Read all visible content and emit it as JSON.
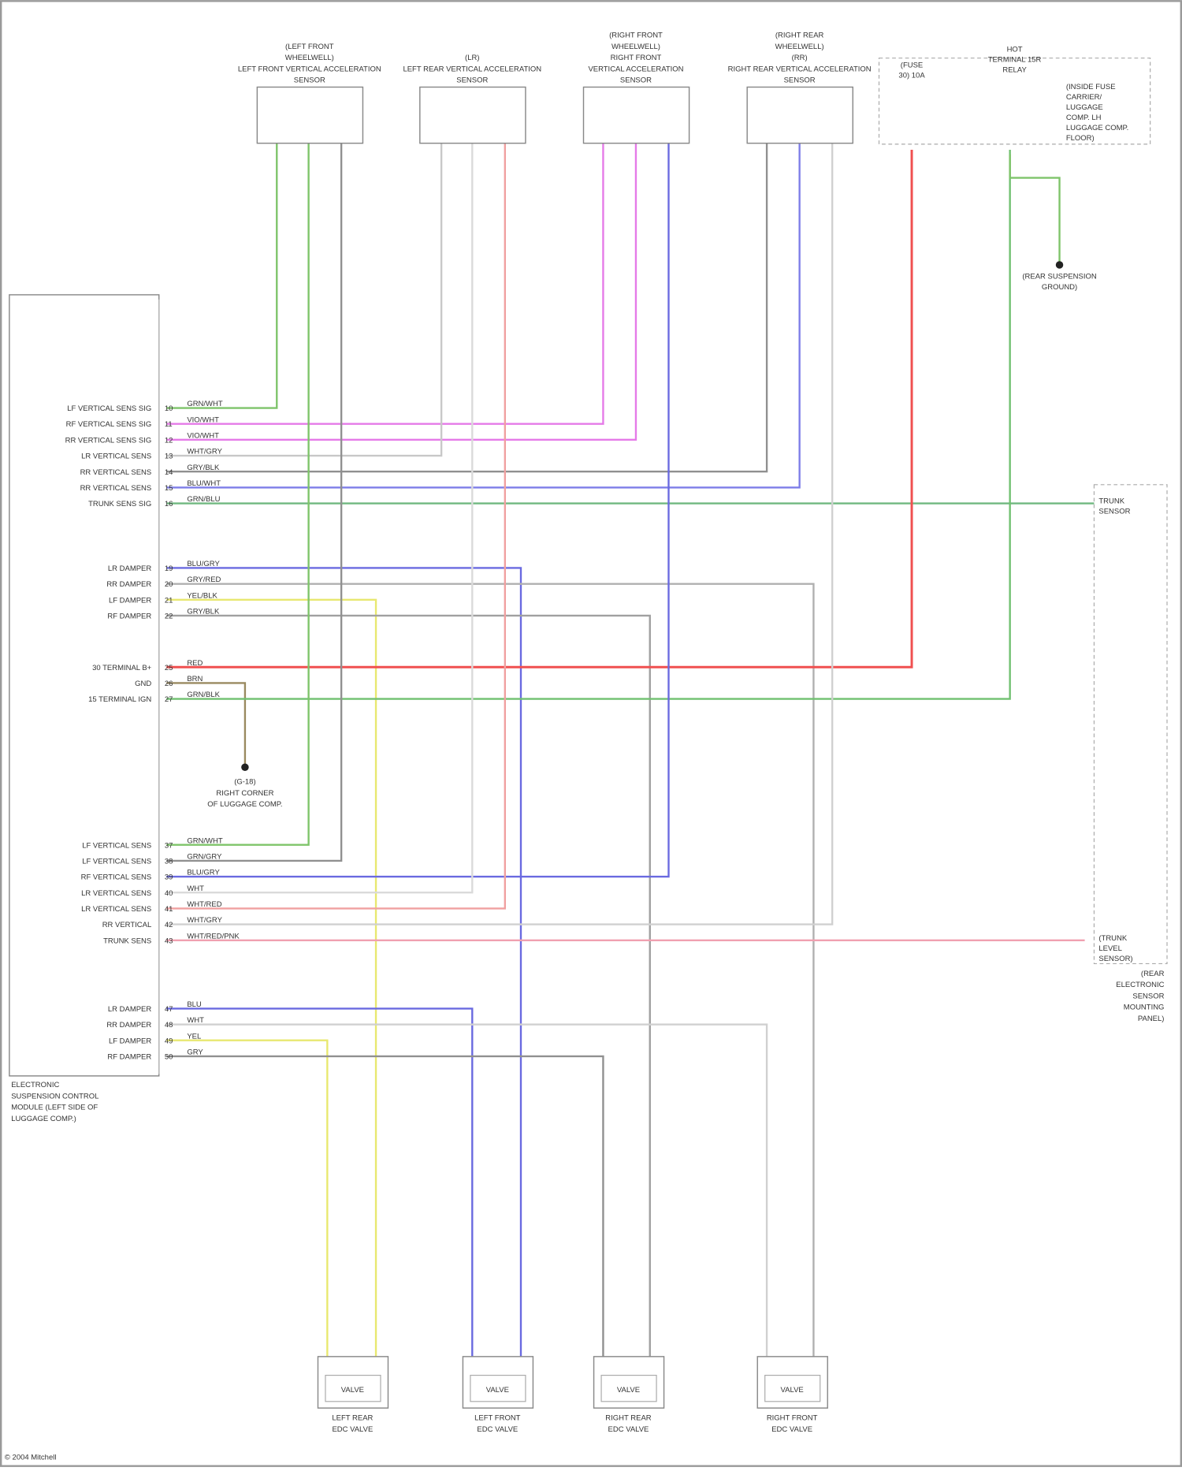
{
  "module": {
    "name_lines": [
      "ELECTRONIC",
      "SUSPENSION CONTROL",
      "MODULE (LEFT SIDE OF",
      "LUGGAGE COMP.)"
    ],
    "pins": [
      {
        "pin": "10",
        "label": "LF VERTICAL SENS SIG",
        "wire": "GRN/WHT",
        "color": "#7ec46a"
      },
      {
        "pin": "11",
        "label": "RF VERTICAL SENS SIG",
        "wire": "VIO/WHT",
        "color": "#e57ae8"
      },
      {
        "pin": "12",
        "label": "RR VERTICAL SENS SIG",
        "wire": "VIO/WHT",
        "color": "#e57ae8"
      },
      {
        "pin": "13",
        "label": "LR VERTICAL SENS",
        "wire": "WHT/GRY",
        "color": "#c8c8c8"
      },
      {
        "pin": "14",
        "label": "RR VERTICAL SENS",
        "wire": "GRY/BLK",
        "color": "#909090"
      },
      {
        "pin": "15",
        "label": "RR VERTICAL SENS",
        "wire": "BLU/WHT",
        "color": "#7d7de8"
      },
      {
        "pin": "16",
        "label": "TRUNK SENS SIG",
        "wire": "GRN/BLU",
        "color": "#70b880"
      },
      {
        "pin": "19",
        "label": "LR DAMPER",
        "wire": "BLU/GRY",
        "color": "#6a6ae0"
      },
      {
        "pin": "20",
        "label": "RR DAMPER",
        "wire": "GRY/RED",
        "color": "#b0b0b0"
      },
      {
        "pin": "21",
        "label": "LF DAMPER",
        "wire": "YEL/BLK",
        "color": "#e8e870"
      },
      {
        "pin": "22",
        "label": "RF DAMPER",
        "wire": "GRY/BLK",
        "color": "#a0a0a0"
      },
      {
        "pin": "25",
        "label": "30 TERMINAL B+",
        "wire": "RED",
        "color": "#f05050"
      },
      {
        "pin": "26",
        "label": "GND",
        "wire": "BRN",
        "color": "#9a8a60"
      },
      {
        "pin": "27",
        "label": "15 TERMINAL IGN",
        "wire": "GRN/BLK",
        "color": "#70c070"
      },
      {
        "pin": "37",
        "label": "LF VERTICAL SENS",
        "wire": "GRN/WHT",
        "color": "#7ec46a"
      },
      {
        "pin": "38",
        "label": "LF VERTICAL SENS",
        "wire": "GRN/GRY",
        "color": "#909090"
      },
      {
        "pin": "39",
        "label": "RF VERTICAL SENS",
        "wire": "BLU/GRY",
        "color": "#6a6ae0"
      },
      {
        "pin": "40",
        "label": "LR VERTICAL SENS",
        "wire": "WHT",
        "color": "#dadada"
      },
      {
        "pin": "41",
        "label": "LR VERTICAL SENS",
        "wire": "WHT/RED",
        "color": "#f0a0a0"
      },
      {
        "pin": "42",
        "label": "RR VERTICAL",
        "wire": "WHT/GRY",
        "color": "#d0d0d0"
      },
      {
        "pin": "43",
        "label": "TRUNK SENS",
        "wire": "WHT/RED/PNK",
        "color": "#f0a0b0"
      },
      {
        "pin": "47",
        "label": "LR DAMPER",
        "wire": "BLU",
        "color": "#6a6ae0"
      },
      {
        "pin": "48",
        "label": "RR DAMPER",
        "wire": "WHT",
        "color": "#d0d0d0"
      },
      {
        "pin": "49",
        "label": "LF DAMPER",
        "wire": "YEL",
        "color": "#e8e870"
      },
      {
        "pin": "50",
        "label": "RF DAMPER",
        "wire": "GRY",
        "color": "#909090"
      }
    ]
  },
  "sensors": [
    {
      "lines": [
        "(LEFT FRONT",
        "WHEELWELL)",
        "LEFT FRONT VERTICAL ACCELERATION",
        "SENSOR"
      ]
    },
    {
      "lines": [
        "(LR)",
        "LEFT REAR VERTICAL ACCELERATION",
        "SENSOR"
      ]
    },
    {
      "lines": [
        "(RIGHT FRONT",
        "WHEELWELL)",
        "RIGHT FRONT",
        "VERTICAL ACCELERATION",
        "SENSOR"
      ]
    },
    {
      "lines": [
        "(RIGHT REAR",
        "WHEELWELL)",
        "(RR)",
        "RIGHT REAR VERTICAL ACCELERATION",
        "SENSOR"
      ]
    }
  ],
  "fuse": {
    "lines": [
      "(FUSE",
      "30) 10A"
    ],
    "right_lines": [
      "HOT",
      "TERMINAL 15R",
      "RELAY"
    ],
    "note_lines": [
      "(INSIDE FUSE",
      "CARRIER/",
      "LUGGAGE",
      "COMP. LH",
      "LUGGAGE COMP.",
      "FLOOR)"
    ]
  },
  "ground_right": {
    "lines": [
      "(REAR SUSPENSION",
      "GROUND)"
    ]
  },
  "ground_left": {
    "lines": [
      "(G-18)",
      "RIGHT CORNER",
      "OF LUGGAGE COMP."
    ]
  },
  "trunk_sensor": {
    "lines": [
      "TRUNK",
      "SENSOR"
    ],
    "bottom_lines": [
      "(TRUNK",
      "LEVEL",
      "SENSOR)"
    ],
    "side_lines": [
      "(REAR",
      "ELECTRONIC",
      "SENSOR",
      "MOUNTING",
      "PANEL)"
    ]
  },
  "valves": [
    {
      "name": "VALVE",
      "lines": [
        "LEFT REAR",
        "EDC VALVE"
      ]
    },
    {
      "name": "VALVE",
      "lines": [
        "LEFT FRONT",
        "EDC VALVE"
      ]
    },
    {
      "name": "VALVE",
      "lines": [
        "RIGHT REAR",
        "EDC VALVE"
      ]
    },
    {
      "name": "VALVE",
      "lines": [
        "RIGHT FRONT",
        "EDC VALVE"
      ]
    }
  ],
  "footer": "© 2004 Mitchell"
}
